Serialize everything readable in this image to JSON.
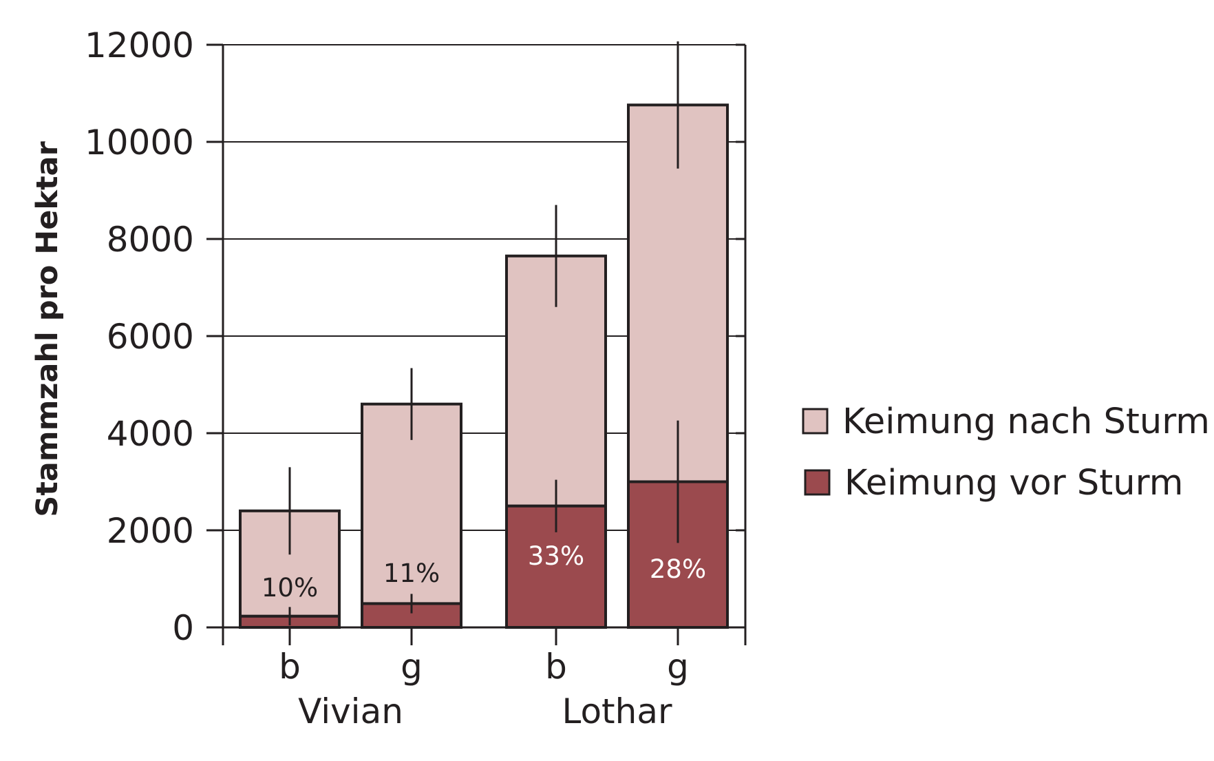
{
  "chart_data": {
    "type": "bar",
    "stacked": true,
    "ylabel": "Stammzahl pro Hektar",
    "xlabel": "",
    "ylim": [
      0,
      12000
    ],
    "yticks": [
      "0",
      "2000",
      "4000",
      "6000",
      "8000",
      "10000",
      "12000"
    ],
    "grid": true,
    "legend_position": "right",
    "categories": [
      "b",
      "g",
      "b",
      "g"
    ],
    "groups": [
      {
        "label": "Vivian",
        "categories": [
          0,
          1
        ]
      },
      {
        "label": "Lothar",
        "categories": [
          2,
          3
        ]
      }
    ],
    "series": [
      {
        "name": "Keimung vor Sturm",
        "color": "#9b4a4e",
        "values": [
          230,
          490,
          2500,
          3000
        ],
        "error": [
          190,
          200,
          540,
          1260
        ]
      },
      {
        "name": "Keimung nach Sturm",
        "color": "#e0c3c1",
        "values": [
          2170,
          4110,
          5150,
          7760
        ],
        "error": [
          900,
          740,
          1050,
          1310
        ]
      }
    ],
    "annotations": [
      "10%",
      "11%",
      "33%",
      "28%"
    ],
    "legend": [
      "Keimung nach Sturm",
      "Keimung vor Sturm"
    ]
  }
}
